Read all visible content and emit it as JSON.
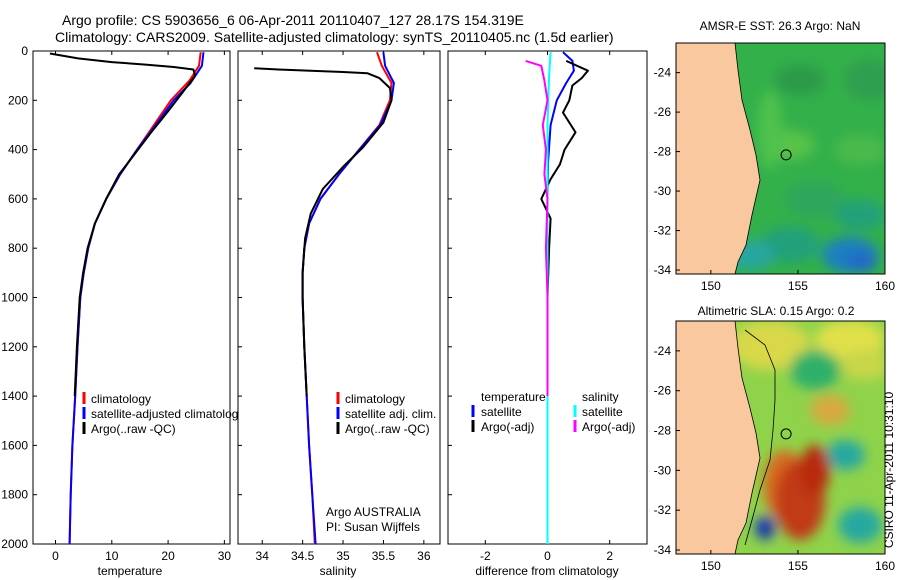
{
  "title_line1": "Argo profile: CS 5903656_6 06-Apr-2011 20110407_127 28.17S 154.319E",
  "title_line2": "Climatology: CARS2009. Satellite-adjusted climatology: synTS_20110405.nc (1.5d earlier)",
  "side_label": "CSIRO 11-Apr-2011 10:31:10",
  "colors": {
    "climatology": "#ff0000",
    "satellite": "#0000ff",
    "argo": "#000000",
    "magenta": "#ff00ff",
    "cyan": "#00ffff",
    "land": "#f9c89f"
  },
  "chart_data": [
    {
      "type": "line",
      "panel": "temperature",
      "xlabel": "temperature",
      "ylabel": "",
      "xlim": [
        -4,
        31
      ],
      "ylim": [
        2000,
        0
      ],
      "xticks": [
        0,
        10,
        20,
        30
      ],
      "yticks": [
        0,
        200,
        400,
        600,
        800,
        1000,
        1200,
        1400,
        1600,
        1800,
        2000
      ],
      "legend": [
        "climatology",
        "satellite-adjusted climatology",
        "Argo(..raw -QC)"
      ],
      "series": [
        {
          "name": "climatology",
          "color": "#ff0000",
          "points": [
            [
              25.8,
              5
            ],
            [
              25.5,
              60
            ],
            [
              23.8,
              120
            ],
            [
              20.5,
              200
            ],
            [
              17.5,
              300
            ],
            [
              14.5,
              400
            ],
            [
              11.5,
              500
            ],
            [
              9.0,
              600
            ],
            [
              7.0,
              700
            ],
            [
              5.8,
              800
            ],
            [
              5.0,
              900
            ],
            [
              4.4,
              1000
            ],
            [
              3.9,
              1200
            ],
            [
              3.5,
              1400
            ],
            [
              3.0,
              1600
            ],
            [
              2.7,
              1800
            ],
            [
              2.5,
              2000
            ]
          ]
        },
        {
          "name": "satellite-adjusted climatology",
          "color": "#0000ff",
          "points": [
            [
              26.3,
              5
            ],
            [
              26.0,
              60
            ],
            [
              24.0,
              130
            ],
            [
              21.0,
              200
            ],
            [
              17.8,
              300
            ],
            [
              14.5,
              400
            ],
            [
              11.5,
              500
            ],
            [
              9.0,
              600
            ],
            [
              7.0,
              700
            ],
            [
              5.8,
              800
            ],
            [
              5.0,
              900
            ],
            [
              4.4,
              1000
            ],
            [
              3.9,
              1200
            ],
            [
              3.5,
              1400
            ],
            [
              3.0,
              1600
            ],
            [
              2.7,
              1800
            ],
            [
              2.5,
              2000
            ]
          ]
        },
        {
          "name": "Argo(..raw -QC)",
          "color": "#000000",
          "points": [
            [
              -1,
              10
            ],
            [
              4,
              30
            ],
            [
              10,
              45
            ],
            [
              16,
              55
            ],
            [
              21,
              65
            ],
            [
              24.5,
              75
            ],
            [
              24.8,
              100
            ],
            [
              22.5,
              170
            ],
            [
              19.8,
              250
            ],
            [
              17.0,
              330
            ],
            [
              14.0,
              420
            ],
            [
              11.3,
              500
            ],
            [
              9.0,
              600
            ],
            [
              7.0,
              700
            ],
            [
              5.7,
              800
            ],
            [
              4.9,
              900
            ],
            [
              4.3,
              1000
            ],
            [
              3.8,
              1200
            ],
            [
              3.4,
              1400
            ]
          ]
        }
      ]
    },
    {
      "type": "line",
      "panel": "salinity",
      "xlabel": "salinity",
      "xlim": [
        33.7,
        36.2
      ],
      "ylim": [
        2000,
        0
      ],
      "xticks": [
        34,
        34.5,
        35,
        35.5,
        36
      ],
      "legend": [
        "climatology",
        "satellite adj. clim.",
        "Argo(..raw -QC)"
      ],
      "annotation": [
        "Argo AUSTRALIA",
        "PI: Susan Wijffels"
      ],
      "series": [
        {
          "name": "climatology",
          "color": "#ff0000",
          "points": [
            [
              35.42,
              5
            ],
            [
              35.48,
              60
            ],
            [
              35.6,
              130
            ],
            [
              35.58,
              200
            ],
            [
              35.45,
              300
            ],
            [
              35.2,
              400
            ],
            [
              34.95,
              500
            ],
            [
              34.72,
              600
            ],
            [
              34.58,
              700
            ],
            [
              34.52,
              800
            ],
            [
              34.5,
              900
            ],
            [
              34.5,
              1000
            ],
            [
              34.52,
              1200
            ],
            [
              34.55,
              1400
            ],
            [
              34.58,
              1600
            ],
            [
              34.62,
              1800
            ],
            [
              34.65,
              2000
            ]
          ]
        },
        {
          "name": "satellite adj. clim.",
          "color": "#0000ff",
          "points": [
            [
              35.5,
              5
            ],
            [
              35.52,
              60
            ],
            [
              35.63,
              130
            ],
            [
              35.6,
              200
            ],
            [
              35.46,
              300
            ],
            [
              35.2,
              400
            ],
            [
              34.95,
              500
            ],
            [
              34.72,
              600
            ],
            [
              34.58,
              700
            ],
            [
              34.52,
              800
            ],
            [
              34.5,
              900
            ],
            [
              34.5,
              1000
            ],
            [
              34.52,
              1200
            ],
            [
              34.55,
              1400
            ],
            [
              34.58,
              1600
            ],
            [
              34.62,
              1800
            ],
            [
              34.66,
              2000
            ]
          ]
        },
        {
          "name": "Argo(..raw -QC)",
          "color": "#000000",
          "points": [
            [
              33.9,
              70
            ],
            [
              34.2,
              75
            ],
            [
              34.6,
              80
            ],
            [
              35.0,
              85
            ],
            [
              35.3,
              90
            ],
            [
              35.45,
              110
            ],
            [
              35.58,
              150
            ],
            [
              35.6,
              200
            ],
            [
              35.5,
              290
            ],
            [
              35.25,
              390
            ],
            [
              35.0,
              470
            ],
            [
              34.75,
              560
            ],
            [
              34.6,
              660
            ],
            [
              34.53,
              760
            ],
            [
              34.5,
              900
            ],
            [
              34.5,
              1000
            ],
            [
              34.52,
              1200
            ],
            [
              34.55,
              1400
            ]
          ]
        }
      ]
    },
    {
      "type": "line",
      "panel": "difference",
      "xlabel": "difference from climatology",
      "xlim": [
        -3.2,
        3.2
      ],
      "ylim": [
        2000,
        0
      ],
      "xticks": [
        -2,
        0,
        2
      ],
      "legend_groups": [
        {
          "header": "temperature",
          "items": [
            {
              "label": "satellite",
              "color": "#0000ff"
            },
            {
              "label": "Argo(-adj)",
              "color": "#000000"
            }
          ]
        },
        {
          "header": "salinity",
          "items": [
            {
              "label": "satellite",
              "color": "#00ffff"
            },
            {
              "label": "Argo(-adj)",
              "color": "#ff00ff"
            }
          ]
        }
      ],
      "series": [
        {
          "name": "temperature satellite",
          "color": "#0000ff",
          "points": [
            [
              0.5,
              5
            ],
            [
              0.8,
              40
            ],
            [
              0.85,
              80
            ],
            [
              0.6,
              130
            ],
            [
              0.3,
              200
            ],
            [
              0.1,
              300
            ],
            [
              0.02,
              450
            ],
            [
              0,
              600
            ],
            [
              0,
              2000
            ]
          ]
        },
        {
          "name": "temperature Argo(-adj)",
          "color": "#000000",
          "points": [
            [
              0.6,
              40
            ],
            [
              1.3,
              80
            ],
            [
              1.1,
              110
            ],
            [
              0.8,
              140
            ],
            [
              0.7,
              200
            ],
            [
              0.5,
              250
            ],
            [
              0.9,
              330
            ],
            [
              0.55,
              400
            ],
            [
              0.4,
              460
            ],
            [
              0.1,
              520
            ],
            [
              -0.2,
              600
            ],
            [
              0.1,
              680
            ],
            [
              0.05,
              800
            ],
            [
              0.0,
              1000
            ],
            [
              0.0,
              1400
            ]
          ]
        },
        {
          "name": "salinity satellite",
          "color": "#00ffff",
          "points": [
            [
              0.1,
              5
            ],
            [
              0.05,
              100
            ],
            [
              0.0,
              300
            ],
            [
              0.0,
              2000
            ]
          ]
        },
        {
          "name": "salinity Argo(-adj)",
          "color": "#ff00ff",
          "points": [
            [
              -0.7,
              40
            ],
            [
              -0.2,
              60
            ],
            [
              -0.1,
              120
            ],
            [
              0.0,
              200
            ],
            [
              -0.15,
              300
            ],
            [
              -0.05,
              400
            ],
            [
              -0.1,
              500
            ],
            [
              0.0,
              600
            ],
            [
              -0.05,
              800
            ],
            [
              0.0,
              1000
            ],
            [
              0.0,
              1400
            ]
          ]
        }
      ]
    },
    {
      "type": "heatmap",
      "panel": "map_sst",
      "title": "AMSR-E SST: 26.3 Argo: NaN",
      "xlim": [
        148,
        160
      ],
      "ylim": [
        -34.2,
        -22.5
      ],
      "xticks": [
        150,
        155,
        160
      ],
      "yticks": [
        -24,
        -26,
        -28,
        -30,
        -32,
        -34
      ],
      "marker": {
        "lon": 154.32,
        "lat": -28.17
      }
    },
    {
      "type": "heatmap",
      "panel": "map_sla",
      "title": "Altimetric SLA: 0.15 Argo: 0.2",
      "xlim": [
        148,
        160
      ],
      "ylim": [
        -34.2,
        -22.5
      ],
      "xticks": [
        150,
        155,
        160
      ],
      "yticks": [
        -24,
        -26,
        -28,
        -30,
        -32,
        -34
      ],
      "marker": {
        "lon": 154.32,
        "lat": -28.17
      }
    }
  ]
}
